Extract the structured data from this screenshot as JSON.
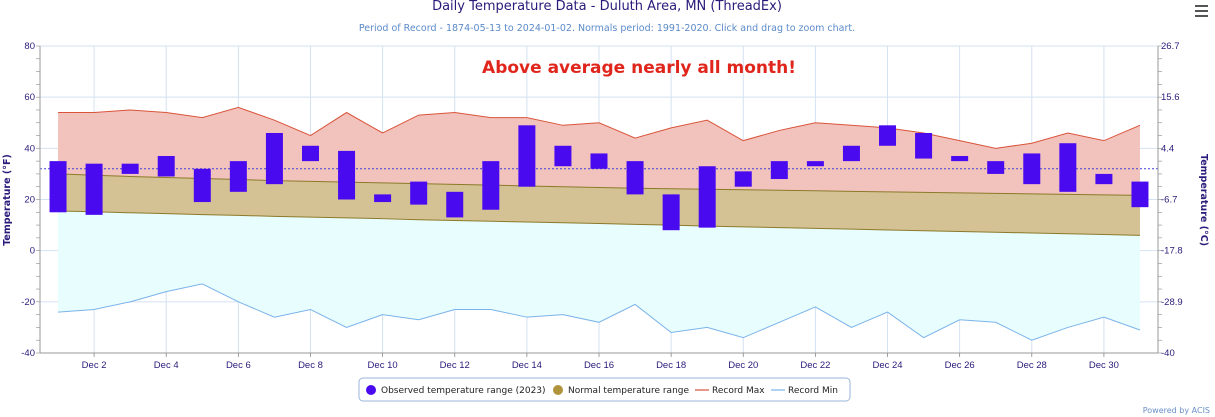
{
  "chart_data": {
    "type": "floating-bar",
    "title": "Daily Temperature Data - Duluth Area, MN (ThreadEx)",
    "subtitle": "Period of Record - 1874-05-13 to 2024-01-02. Normals period: 1991-2020. Click and drag to zoom chart.",
    "annotation": "Above average nearly all month!",
    "ylabel": "Temperature (°F)",
    "ylabel_right": "Temperature (°C)",
    "ylim": [
      -40,
      80
    ],
    "xlim": [
      0.5,
      31.5
    ],
    "yticks": [
      -40,
      -20,
      0,
      20,
      40,
      60,
      80
    ],
    "yticks_right": [
      "-40",
      "-28.9",
      "-17.8",
      "-6.7",
      "4.4",
      "15.6",
      "26.7"
    ],
    "xticks": [
      {
        "day": 2,
        "label": "Dec 2"
      },
      {
        "day": 4,
        "label": "Dec 4"
      },
      {
        "day": 6,
        "label": "Dec 6"
      },
      {
        "day": 8,
        "label": "Dec 8"
      },
      {
        "day": 10,
        "label": "Dec 10"
      },
      {
        "day": 12,
        "label": "Dec 12"
      },
      {
        "day": 14,
        "label": "Dec 14"
      },
      {
        "day": 16,
        "label": "Dec 16"
      },
      {
        "day": 18,
        "label": "Dec 18"
      },
      {
        "day": 20,
        "label": "Dec 20"
      },
      {
        "day": 22,
        "label": "Dec 22"
      },
      {
        "day": 24,
        "label": "Dec 24"
      },
      {
        "day": 26,
        "label": "Dec 26"
      },
      {
        "day": 28,
        "label": "Dec 28"
      },
      {
        "day": 30,
        "label": "Dec 30"
      }
    ],
    "grid": true,
    "mean_line": 32,
    "legend": [
      {
        "name": "Observed temperature range (2023)",
        "color": "#4a0af0",
        "symbol": "circle"
      },
      {
        "name": "Normal temperature range",
        "color": "#b0943c",
        "symbol": "circle"
      },
      {
        "name": "Record Max",
        "color": "#d9543a",
        "symbol": "line"
      },
      {
        "name": "Record Min",
        "color": "#7ab3ea",
        "symbol": "line"
      }
    ],
    "legend_position": "bottom-center",
    "days": [
      1,
      2,
      3,
      4,
      5,
      6,
      7,
      8,
      9,
      10,
      11,
      12,
      13,
      14,
      15,
      16,
      17,
      18,
      19,
      20,
      21,
      22,
      23,
      24,
      25,
      26,
      27,
      28,
      29,
      30,
      31
    ],
    "observed_min": [
      15,
      14,
      30,
      29,
      19,
      23,
      26,
      35,
      20,
      19,
      18,
      13,
      16,
      25,
      33,
      32,
      22,
      8,
      9,
      25,
      28,
      33,
      35,
      41,
      36,
      35,
      30,
      26,
      23,
      26,
      17
    ],
    "observed_max": [
      35,
      34,
      34,
      37,
      32,
      35,
      46,
      41,
      39,
      22,
      27,
      23,
      35,
      49,
      41,
      38,
      35,
      22,
      33,
      31,
      35,
      35,
      41,
      49,
      46,
      37,
      35,
      38,
      42,
      30,
      27
    ],
    "normal_max": [
      30,
      29.5,
      29,
      28.6,
      28.2,
      27.8,
      27.4,
      27.1,
      26.8,
      26.5,
      26.2,
      25.9,
      25.6,
      25.3,
      25,
      24.7,
      24.4,
      24.2,
      24,
      23.8,
      23.6,
      23.4,
      23.2,
      23,
      22.8,
      22.6,
      22.4,
      22.2,
      22,
      21.8,
      21.6
    ],
    "normal_min": [
      15.5,
      15.2,
      14.8,
      14.5,
      14.1,
      13.8,
      13.4,
      13.1,
      12.8,
      12.5,
      12.1,
      11.8,
      11.5,
      11.2,
      10.9,
      10.6,
      10.3,
      10,
      9.6,
      9.3,
      9,
      8.7,
      8.4,
      8.1,
      7.8,
      7.5,
      7.2,
      6.9,
      6.6,
      6.3,
      6
    ],
    "record_max": [
      54,
      54,
      55,
      54,
      52,
      56,
      51,
      45,
      54,
      46,
      53,
      54,
      52,
      52,
      49,
      50,
      44,
      48,
      51,
      43,
      47,
      50,
      49,
      48,
      46,
      43,
      40,
      42,
      46,
      43,
      49
    ],
    "record_min": [
      -24,
      -23,
      -20,
      -16,
      -13,
      -20,
      -26,
      -23,
      -30,
      -25,
      -27,
      -23,
      -23,
      -26,
      -25,
      -28,
      -21,
      -32,
      -30,
      -34,
      -28,
      -22,
      -30,
      -24,
      -34,
      -27,
      -28,
      -35,
      -30,
      -26,
      -31
    ]
  },
  "ui": {
    "menu_icon": "hamburger-icon",
    "credit": "Powered by ACIS"
  },
  "colors": {
    "observed": "#4a0af0",
    "normal_fill": "#d4c294",
    "normal_line": "#8c7a2a",
    "record_max_fill": "#f2c3bd",
    "record_max_line": "#d9543a",
    "record_min_fill": "#e8fdfd",
    "record_min_line": "#7ab3ea",
    "grid": "#d4e2f2",
    "mean_line": "#4040d0"
  }
}
